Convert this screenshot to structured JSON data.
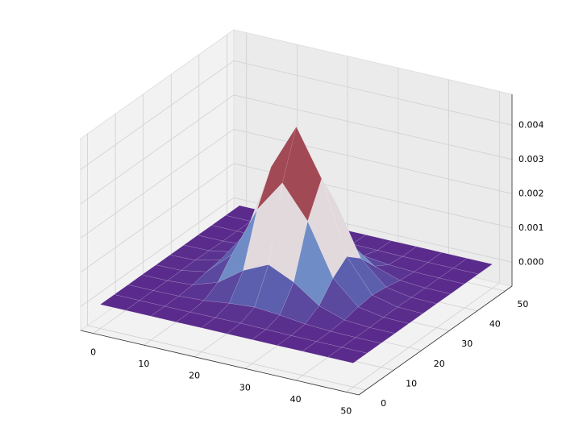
{
  "chart_data": {
    "type": "surface",
    "x": [
      0,
      5,
      10,
      15,
      20,
      25,
      30,
      35,
      40,
      45,
      50
    ],
    "y": [
      0,
      5,
      10,
      15,
      20,
      25,
      30,
      35,
      40,
      45,
      50
    ],
    "z": [
      [
        0,
        0,
        0,
        0,
        0,
        0,
        0,
        0,
        0,
        0,
        0
      ],
      [
        0,
        0,
        0,
        0,
        1e-05,
        2e-05,
        1e-05,
        0,
        0,
        0,
        0
      ],
      [
        0,
        0,
        1e-05,
        5e-05,
        0.00014,
        0.0002,
        0.00014,
        5e-05,
        1e-05,
        0,
        0
      ],
      [
        0,
        0,
        5e-05,
        0.00029,
        0.00081,
        0.00115,
        0.00081,
        0.00029,
        5e-05,
        0,
        0
      ],
      [
        0,
        1e-05,
        0.00014,
        0.00081,
        0.0023,
        0.00325,
        0.0023,
        0.00081,
        0.00014,
        1e-05,
        0
      ],
      [
        0,
        2e-05,
        0.0002,
        0.00115,
        0.00325,
        0.0046,
        0.00325,
        0.00115,
        0.0002,
        2e-05,
        0
      ],
      [
        0,
        1e-05,
        0.00014,
        0.00081,
        0.0023,
        0.00325,
        0.0023,
        0.00081,
        0.00014,
        1e-05,
        0
      ],
      [
        0,
        0,
        5e-05,
        0.00029,
        0.00081,
        0.00115,
        0.00081,
        0.00029,
        5e-05,
        0,
        0
      ],
      [
        0,
        0,
        1e-05,
        5e-05,
        0.00014,
        0.0002,
        0.00014,
        5e-05,
        1e-05,
        0,
        0
      ],
      [
        0,
        0,
        0,
        0,
        1e-05,
        2e-05,
        1e-05,
        0,
        0,
        0,
        0
      ],
      [
        0,
        0,
        0,
        0,
        0,
        0,
        0,
        0,
        0,
        0,
        0
      ]
    ],
    "xlim": [
      -2.5,
      52.5
    ],
    "ylim": [
      -2.5,
      52.5
    ],
    "zlim": [
      -0.0007,
      0.0049
    ],
    "xticks": [
      0,
      10,
      20,
      30,
      40,
      50
    ],
    "yticks": [
      0,
      10,
      20,
      30,
      40,
      50
    ],
    "zticks": [
      {
        "value": 0,
        "label": "0.000"
      },
      {
        "value": 0.001,
        "label": "0.001"
      },
      {
        "value": 0.002,
        "label": "0.002"
      },
      {
        "value": 0.003,
        "label": "0.003"
      },
      {
        "value": 0.004,
        "label": "0.004"
      }
    ],
    "colors": [
      "#5a2b8c",
      "#5d7ec2",
      "#e3dde3",
      "#c9785a",
      "#8a2e50",
      "#2e1538"
    ],
    "grid": true
  }
}
